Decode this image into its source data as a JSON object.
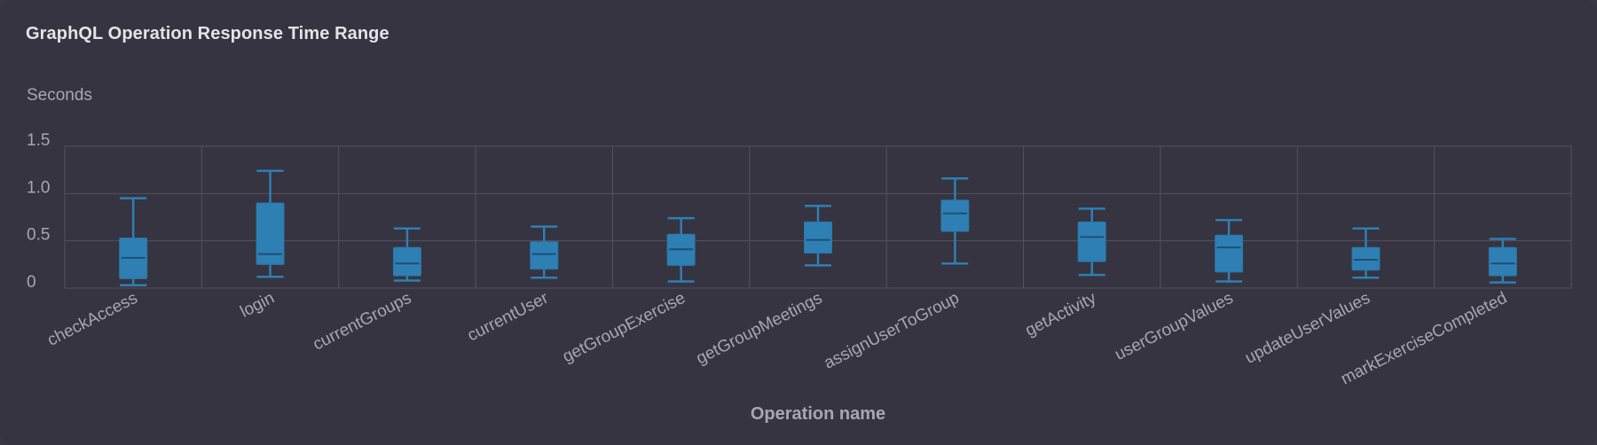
{
  "panel": {
    "title": "GraphQL Operation Response Time Range"
  },
  "colors": {
    "box_fill": "#2e7fb4",
    "box_stroke": "#2a76a8",
    "median": "#1d4f73",
    "grid": "#54525e",
    "text": "#a8a6b2",
    "title": "#e4e2ea",
    "background": "#363440"
  },
  "chart_data": {
    "type": "boxplot",
    "title": "GraphQL Operation Response Time Range",
    "ylabel": "Seconds",
    "xlabel": "Operation name",
    "ylim": [
      0,
      1.5
    ],
    "yticks": [
      0,
      0.5,
      1.0,
      1.5
    ],
    "ytick_labels": [
      "0",
      "0.5",
      "1.0",
      "1.5"
    ],
    "grid": true,
    "categories": [
      "checkAccess",
      "login",
      "currentGroups",
      "currentUser",
      "getGroupExercise",
      "getGroupMeetings",
      "assignUserToGroup",
      "getActivity",
      "userGroupValues",
      "updateUserValues",
      "markExerciseCompleted"
    ],
    "boxes": [
      {
        "name": "checkAccess",
        "min": 0.03,
        "q1": 0.1,
        "median": 0.32,
        "q3": 0.53,
        "max": 0.95
      },
      {
        "name": "login",
        "min": 0.12,
        "q1": 0.25,
        "median": 0.36,
        "q3": 0.9,
        "max": 1.24
      },
      {
        "name": "currentGroups",
        "min": 0.08,
        "q1": 0.13,
        "median": 0.26,
        "q3": 0.43,
        "max": 0.63
      },
      {
        "name": "currentUser",
        "min": 0.11,
        "q1": 0.2,
        "median": 0.36,
        "q3": 0.49,
        "max": 0.65
      },
      {
        "name": "getGroupExercise",
        "min": 0.07,
        "q1": 0.24,
        "median": 0.41,
        "q3": 0.57,
        "max": 0.74
      },
      {
        "name": "getGroupMeetings",
        "min": 0.24,
        "q1": 0.37,
        "median": 0.51,
        "q3": 0.7,
        "max": 0.87
      },
      {
        "name": "assignUserToGroup",
        "min": 0.26,
        "q1": 0.6,
        "median": 0.79,
        "q3": 0.93,
        "max": 1.16
      },
      {
        "name": "getActivity",
        "min": 0.14,
        "q1": 0.28,
        "median": 0.54,
        "q3": 0.7,
        "max": 0.84
      },
      {
        "name": "userGroupValues",
        "min": 0.07,
        "q1": 0.17,
        "median": 0.43,
        "q3": 0.56,
        "max": 0.72
      },
      {
        "name": "updateUserValues",
        "min": 0.11,
        "q1": 0.19,
        "median": 0.3,
        "q3": 0.43,
        "max": 0.63
      },
      {
        "name": "markExerciseCompleted",
        "min": 0.06,
        "q1": 0.13,
        "median": 0.26,
        "q3": 0.43,
        "max": 0.52
      }
    ]
  }
}
